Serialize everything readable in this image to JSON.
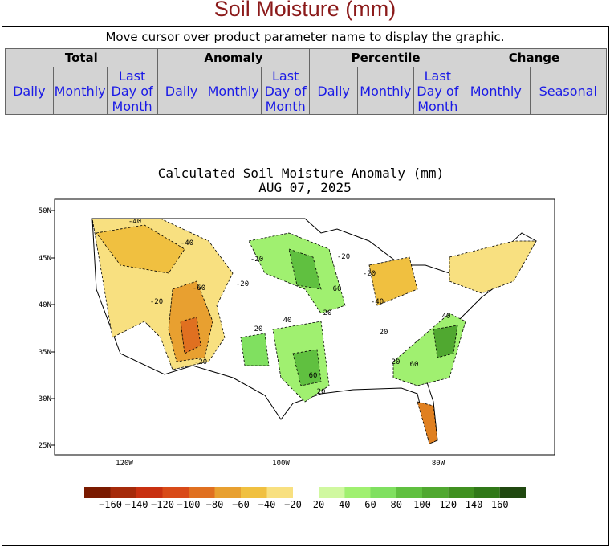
{
  "header": {
    "title": "Soil Moisture (mm)"
  },
  "instruction": "Move cursor over product parameter name to display the graphic.",
  "table": {
    "groups": [
      "Total",
      "Anomaly",
      "Percentile",
      "Change"
    ],
    "links": [
      [
        "Daily",
        "Monthly",
        "Last Day of Month"
      ],
      [
        "Daily",
        "Monthly",
        "Last Day of Month"
      ],
      [
        "Daily",
        "Monthly",
        "Last Day of Month"
      ],
      [
        "Monthly",
        "Seasonal"
      ]
    ]
  },
  "map": {
    "title": "Calculated Soil Moisture Anomaly (mm)",
    "date": "AUG 07, 2025",
    "lat_labels": [
      "50N",
      "45N",
      "40N",
      "35N",
      "30N",
      "25N"
    ],
    "lon_labels": [
      "120W",
      "100W",
      "80W"
    ],
    "contour_labels": [
      "-40",
      "-40",
      "-20",
      "-60",
      "-20",
      "-20",
      "-20",
      "20",
      "40",
      "60",
      "20",
      "-20",
      "-40",
      "40",
      "60",
      "20",
      "20",
      "60",
      "20",
      "-20"
    ],
    "colorbar_labels": [
      "−160",
      "−140",
      "−120",
      "−100",
      "−80",
      "−60",
      "−40",
      "−20",
      "20",
      "40",
      "60",
      "80",
      "100",
      "120",
      "140",
      "160"
    ]
  }
}
